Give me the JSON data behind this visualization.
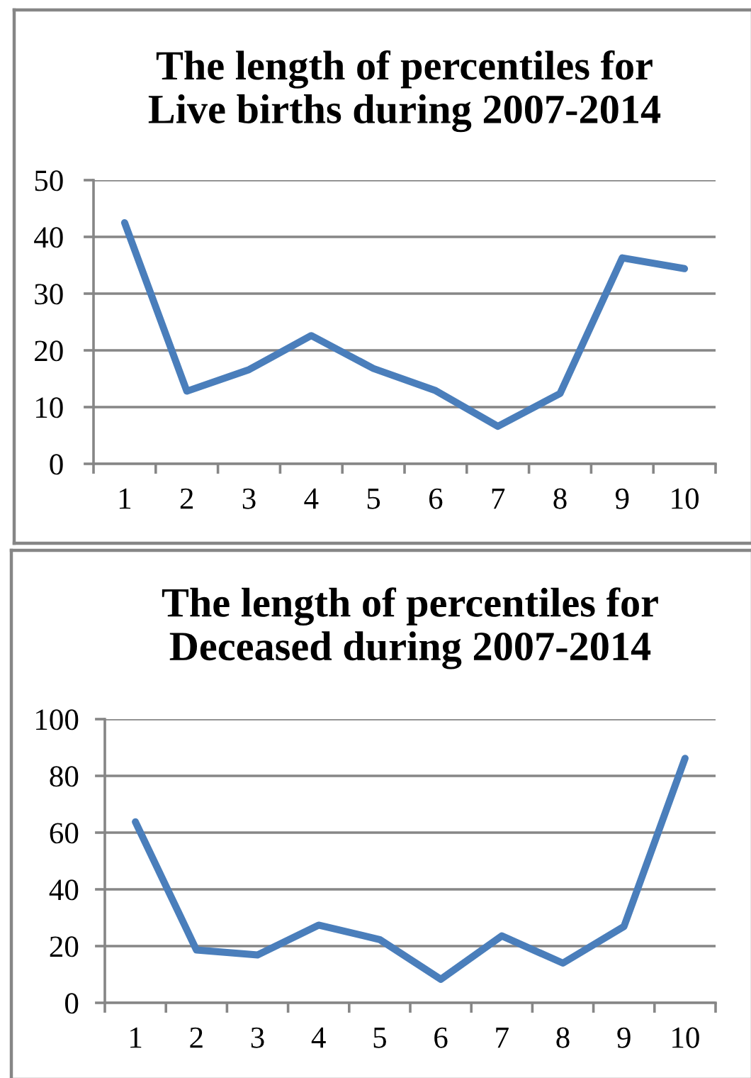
{
  "chart_data": [
    {
      "type": "line",
      "title": "The length of percentiles for\nLive births during 2007-2014",
      "categories": [
        "1",
        "2",
        "3",
        "4",
        "5",
        "6",
        "7",
        "8",
        "9",
        "10"
      ],
      "series": [
        {
          "color": "#4a7ebb",
          "values": [
            42.5,
            12.8,
            16.6,
            22.6,
            16.8,
            12.9,
            6.6,
            12.4,
            36.3,
            34.4
          ]
        }
      ],
      "ylim": [
        0,
        50
      ],
      "yticks": [
        0,
        10,
        20,
        30,
        40,
        50
      ],
      "grid": "y"
    },
    {
      "type": "line",
      "title": "The length of percentiles for\nDeceased during 2007-2014",
      "categories": [
        "1",
        "2",
        "3",
        "4",
        "5",
        "6",
        "7",
        "8",
        "9",
        "10"
      ],
      "series": [
        {
          "color": "#4a7ebb",
          "values": [
            63.8,
            18.6,
            16.9,
            27.4,
            22.3,
            8.3,
            23.6,
            14.0,
            26.9,
            86.2
          ]
        }
      ],
      "ylim": [
        0,
        100
      ],
      "yticks": [
        0,
        20,
        40,
        60,
        80,
        100
      ],
      "grid": "y"
    }
  ]
}
